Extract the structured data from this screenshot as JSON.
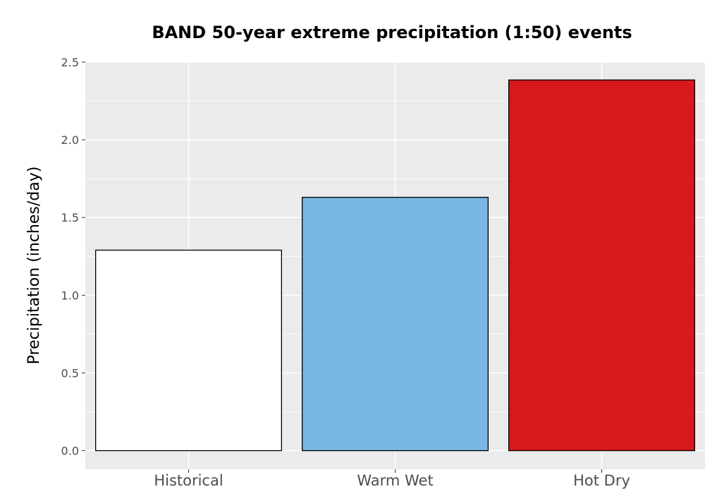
{
  "chart_data": {
    "type": "bar",
    "title": "BAND 50-year extreme precipitation (1:50) events",
    "xlabel": "",
    "ylabel": "Precipitation (inches/day)",
    "categories": [
      "Historical",
      "Warm Wet",
      "Hot Dry"
    ],
    "values": [
      1.29,
      1.63,
      2.385
    ],
    "colors": [
      "#ffffff",
      "#78b7e2",
      "#d7191c"
    ],
    "bar_outline": "#000000",
    "panel_background": "#ebebeb",
    "gridline_color": "#ffffff",
    "ylim": [
      -0.12,
      2.5
    ],
    "yticks": [
      0.0,
      0.5,
      1.0,
      1.5,
      2.0,
      2.5
    ],
    "ytick_labels": [
      "0.0",
      "0.5",
      "1.0",
      "1.5",
      "2.0",
      "2.5"
    ],
    "grid": true,
    "legend": "none"
  }
}
